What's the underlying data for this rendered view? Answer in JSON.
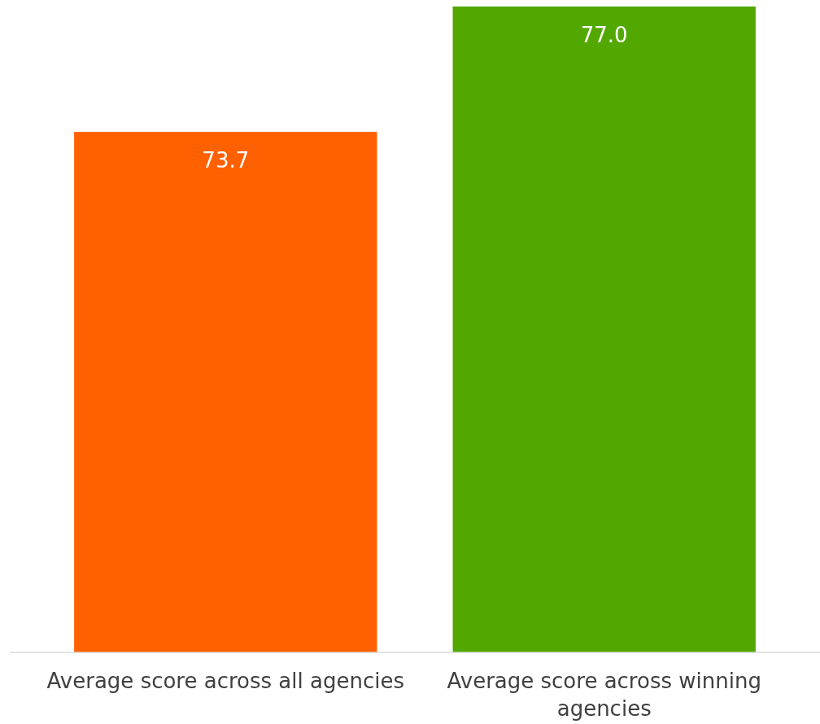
{
  "chart_data": {
    "type": "bar",
    "categories": [
      "Average score across all agencies",
      "Average score across winning agencies"
    ],
    "values": [
      73.7,
      77.0
    ],
    "colors": [
      "#ff6000",
      "#52a800"
    ],
    "value_labels": [
      "73.7",
      "77.0"
    ],
    "ylim": [
      60,
      77
    ]
  }
}
